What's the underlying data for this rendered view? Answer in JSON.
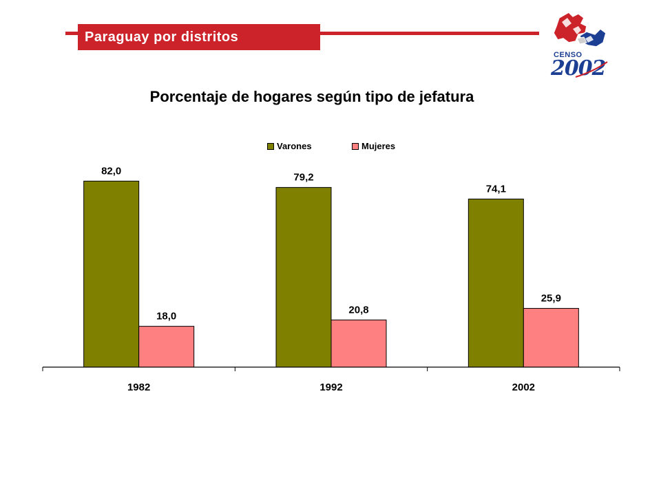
{
  "header": {
    "title": "Paraguay por distritos"
  },
  "logo": {
    "line1": "CENSO",
    "line2": "2002"
  },
  "colors": {
    "accent": "#cc2229",
    "varones": "#808000",
    "mujeres": "#ff8080",
    "logo_blue": "#1c3f94"
  },
  "chart_data": {
    "type": "bar",
    "title": "Porcentaje de hogares según tipo de jefatura",
    "categories": [
      "1982",
      "1992",
      "2002"
    ],
    "series": [
      {
        "name": "Varones",
        "values": [
          82.0,
          79.2,
          74.1
        ],
        "labels": [
          "82,0",
          "79,2",
          "74,1"
        ],
        "color": "#808000"
      },
      {
        "name": "Mujeres",
        "values": [
          18.0,
          20.8,
          25.9
        ],
        "labels": [
          "18,0",
          "20,8",
          "25,9"
        ],
        "color": "#ff8080"
      }
    ],
    "ylim": [
      0,
      100
    ],
    "grid": false,
    "legend": "top-center"
  }
}
